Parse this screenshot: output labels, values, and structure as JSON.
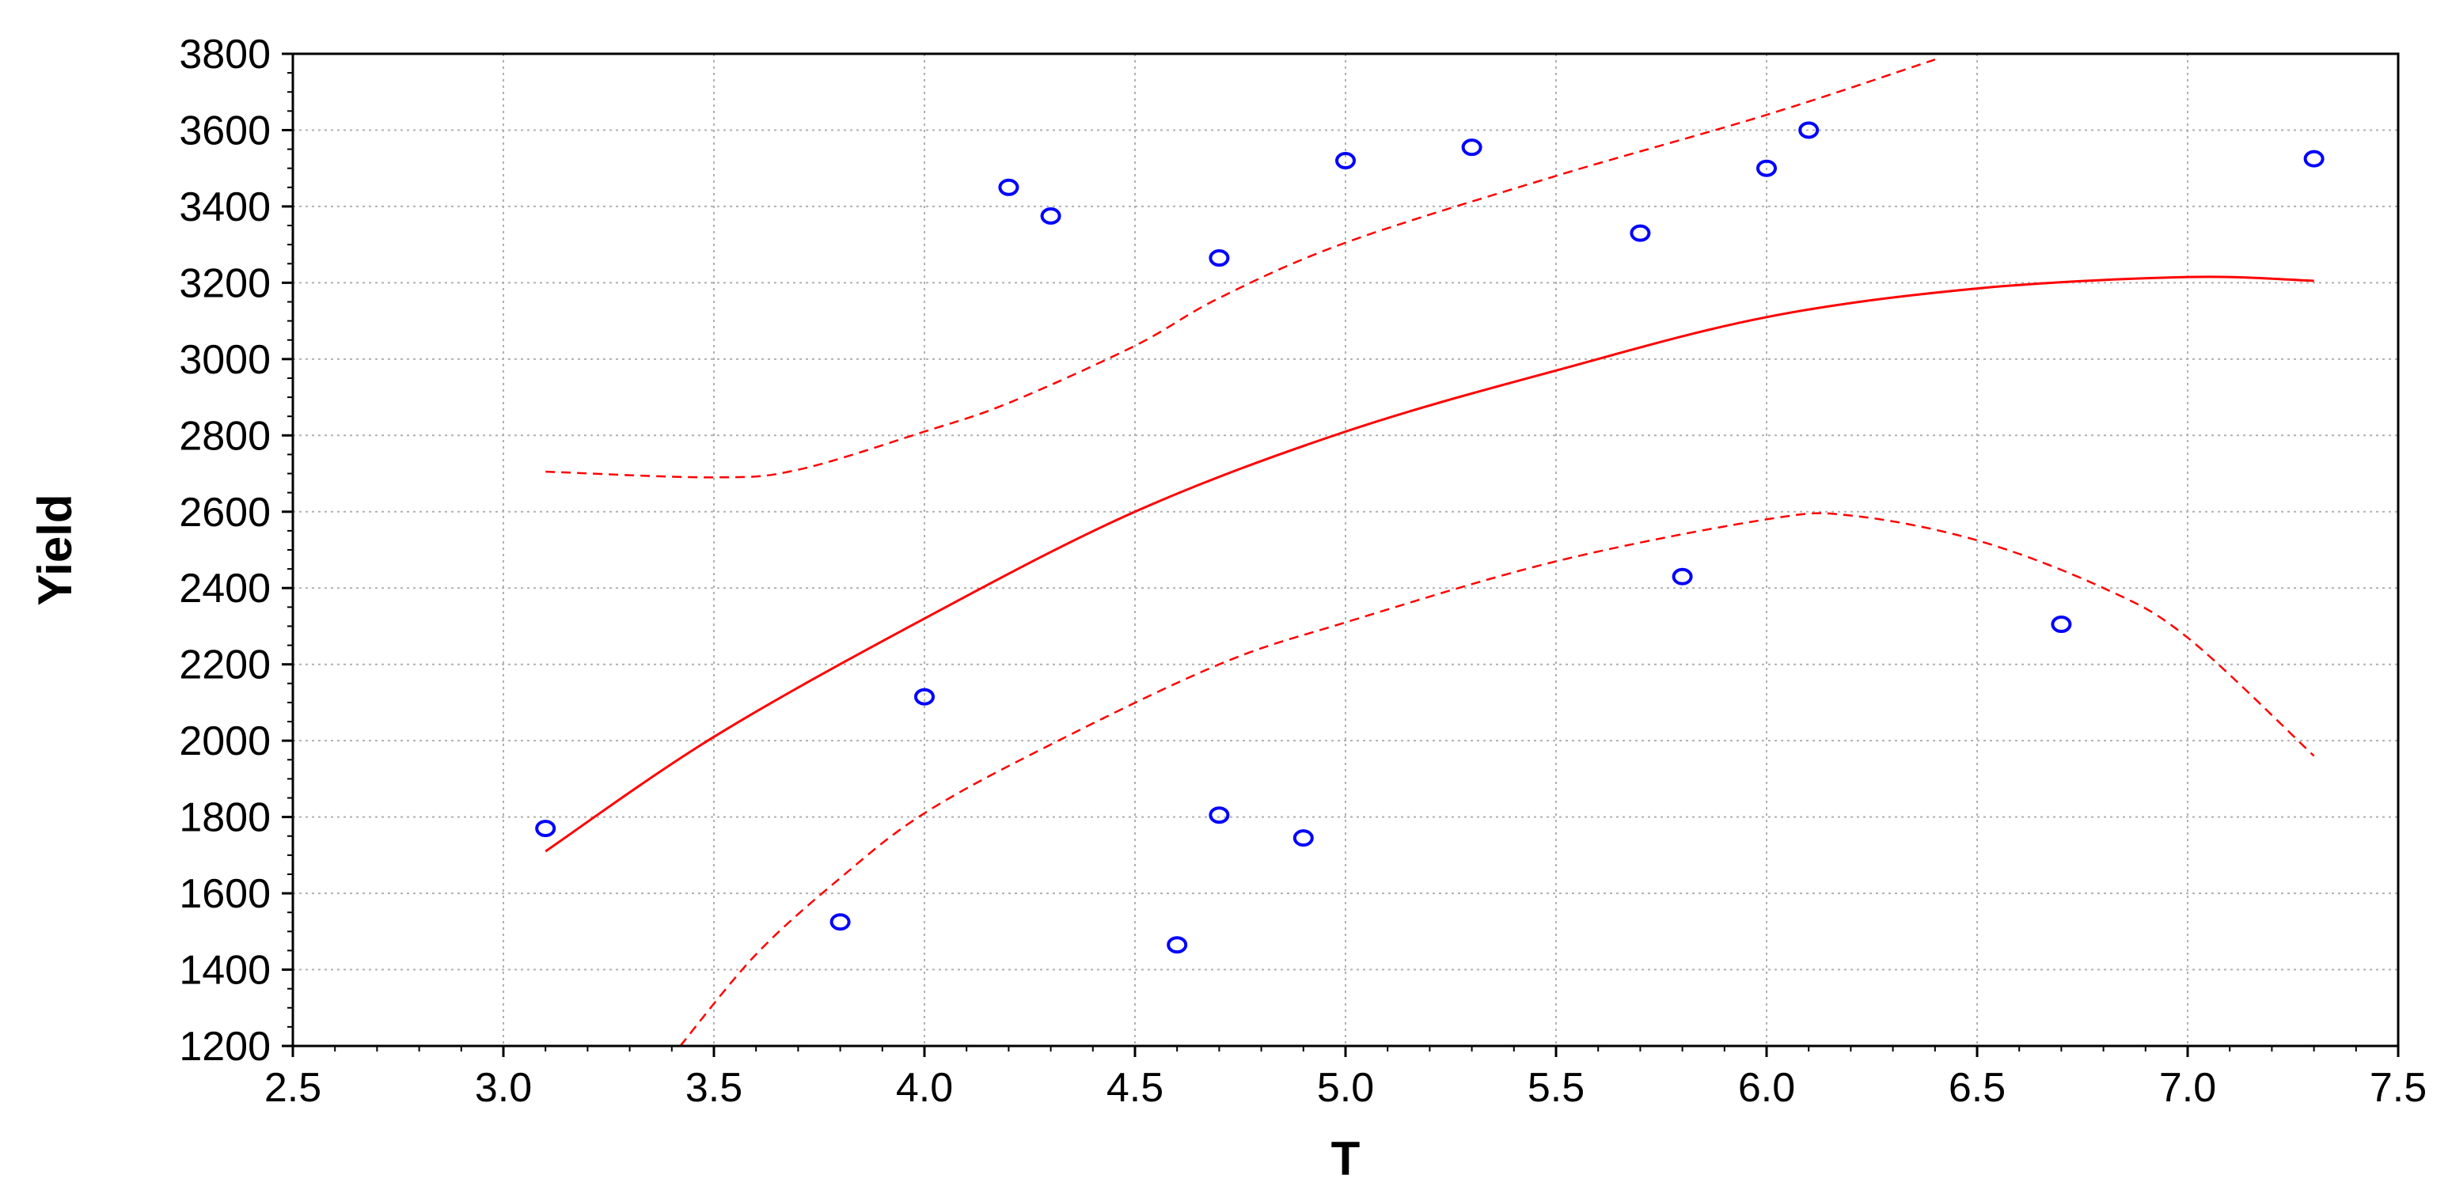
{
  "chart_data": {
    "type": "scatter",
    "title": "",
    "xlabel": "T",
    "ylabel": "Yield",
    "xlim": [
      2.5,
      7.5
    ],
    "ylim": [
      1200,
      3800
    ],
    "xticks": [
      "2.5",
      "3.0",
      "3.5",
      "4.0",
      "4.5",
      "5.0",
      "5.5",
      "6.0",
      "6.5",
      "7.0",
      "7.5"
    ],
    "yticks": [
      "1200",
      "1400",
      "1600",
      "1800",
      "2000",
      "2200",
      "2400",
      "2600",
      "2800",
      "3000",
      "3200",
      "3400",
      "3600",
      "3800"
    ],
    "grid": true,
    "legend": "none",
    "colors": {
      "points": "#0000ff",
      "fit": "#ff0000",
      "band": "#ff0000",
      "grid": "#b0b0b0",
      "axis": "#000000"
    },
    "points": [
      {
        "x": 3.1,
        "y": 1770
      },
      {
        "x": 3.8,
        "y": 1525
      },
      {
        "x": 4.0,
        "y": 2115
      },
      {
        "x": 4.2,
        "y": 3450
      },
      {
        "x": 4.3,
        "y": 3375
      },
      {
        "x": 4.6,
        "y": 1465
      },
      {
        "x": 4.7,
        "y": 3265
      },
      {
        "x": 4.7,
        "y": 1805
      },
      {
        "x": 4.9,
        "y": 1745
      },
      {
        "x": 5.0,
        "y": 3520
      },
      {
        "x": 5.3,
        "y": 3555
      },
      {
        "x": 5.7,
        "y": 3330
      },
      {
        "x": 5.8,
        "y": 2430
      },
      {
        "x": 6.0,
        "y": 3500
      },
      {
        "x": 6.1,
        "y": 3600
      },
      {
        "x": 6.7,
        "y": 2305
      },
      {
        "x": 7.3,
        "y": 3525
      }
    ],
    "fit_line": [
      {
        "x": 3.1,
        "y": 1710
      },
      {
        "x": 3.5,
        "y": 2010
      },
      {
        "x": 4.0,
        "y": 2320
      },
      {
        "x": 4.5,
        "y": 2600
      },
      {
        "x": 5.0,
        "y": 2810
      },
      {
        "x": 5.5,
        "y": 2970
      },
      {
        "x": 6.0,
        "y": 3110
      },
      {
        "x": 6.5,
        "y": 3185
      },
      {
        "x": 7.0,
        "y": 3215
      },
      {
        "x": 7.3,
        "y": 3205
      }
    ],
    "upper_band": [
      {
        "x": 3.1,
        "y": 2705
      },
      {
        "x": 3.5,
        "y": 2690
      },
      {
        "x": 3.7,
        "y": 2710
      },
      {
        "x": 4.0,
        "y": 2810
      },
      {
        "x": 4.2,
        "y": 2885
      },
      {
        "x": 4.5,
        "y": 3035
      },
      {
        "x": 4.7,
        "y": 3160
      },
      {
        "x": 5.0,
        "y": 3305
      },
      {
        "x": 5.5,
        "y": 3480
      },
      {
        "x": 6.0,
        "y": 3640
      },
      {
        "x": 6.4,
        "y": 3785
      }
    ],
    "lower_band": [
      {
        "x": 3.42,
        "y": 1200
      },
      {
        "x": 3.6,
        "y": 1440
      },
      {
        "x": 3.8,
        "y": 1640
      },
      {
        "x": 4.0,
        "y": 1810
      },
      {
        "x": 4.3,
        "y": 1990
      },
      {
        "x": 4.7,
        "y": 2200
      },
      {
        "x": 5.0,
        "y": 2310
      },
      {
        "x": 5.5,
        "y": 2470
      },
      {
        "x": 6.0,
        "y": 2580
      },
      {
        "x": 6.2,
        "y": 2590
      },
      {
        "x": 6.5,
        "y": 2525
      },
      {
        "x": 6.8,
        "y": 2400
      },
      {
        "x": 7.0,
        "y": 2270
      },
      {
        "x": 7.3,
        "y": 1960
      }
    ]
  }
}
